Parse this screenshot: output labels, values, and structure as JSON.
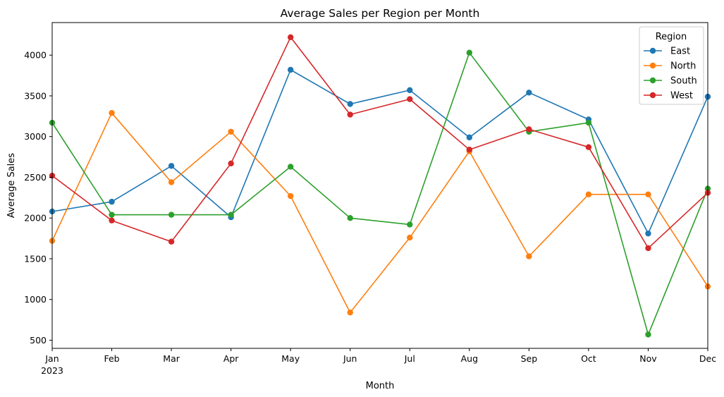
{
  "chart_data": {
    "type": "line",
    "title": "Average Sales per Region per Month",
    "xlabel": "Month",
    "ylabel": "Average Sales",
    "year_label": "2023",
    "categories": [
      "Jan",
      "Feb",
      "Mar",
      "Apr",
      "May",
      "Jun",
      "Jul",
      "Aug",
      "Sep",
      "Oct",
      "Nov",
      "Dec"
    ],
    "ylim": [
      400,
      4400
    ],
    "yticks": [
      500,
      1000,
      1500,
      2000,
      2500,
      3000,
      3500,
      4000
    ],
    "grid": false,
    "legend": {
      "title": "Region",
      "placement": "top-right"
    },
    "series": [
      {
        "name": "East",
        "color": "#1f77b4",
        "values": [
          2080,
          2200,
          2640,
          2010,
          3820,
          3400,
          3570,
          2990,
          3540,
          3210,
          1810,
          3490
        ]
      },
      {
        "name": "North",
        "color": "#ff7f0e",
        "values": [
          1720,
          3290,
          2440,
          3060,
          2270,
          840,
          1760,
          2820,
          1530,
          2290,
          2290,
          1160
        ]
      },
      {
        "name": "South",
        "color": "#2ca02c",
        "values": [
          3170,
          2040,
          2040,
          2040,
          2630,
          2000,
          1920,
          4030,
          3060,
          3170,
          570,
          2360
        ]
      },
      {
        "name": "West",
        "color": "#d62728",
        "values": [
          2520,
          1970,
          1710,
          2670,
          4220,
          3270,
          3460,
          2840,
          3090,
          2870,
          1630,
          2310
        ]
      }
    ]
  }
}
